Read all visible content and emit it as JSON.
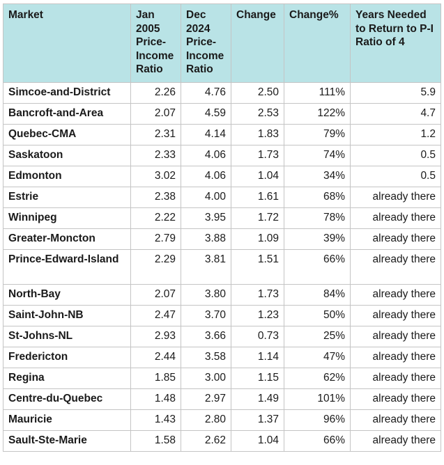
{
  "table": {
    "headers": {
      "market": "Market",
      "jan": "Jan 2005 Price-Income Ratio",
      "dec": "Dec 2024 Price-Income Ratio",
      "change": "Change",
      "change_pct": "Change%",
      "years": "Years Needed to Return to P-I Ratio of 4"
    },
    "rows": [
      {
        "market": "Simcoe-and-District",
        "jan": "2.26",
        "dec": "4.76",
        "change": "2.50",
        "change_pct": "111%",
        "years": "5.9"
      },
      {
        "market": "Bancroft-and-Area",
        "jan": "2.07",
        "dec": "4.59",
        "change": "2.53",
        "change_pct": "122%",
        "years": "4.7"
      },
      {
        "market": "Quebec-CMA",
        "jan": "2.31",
        "dec": "4.14",
        "change": "1.83",
        "change_pct": "79%",
        "years": "1.2"
      },
      {
        "market": "Saskatoon",
        "jan": "2.33",
        "dec": "4.06",
        "change": "1.73",
        "change_pct": "74%",
        "years": "0.5"
      },
      {
        "market": "Edmonton",
        "jan": "3.02",
        "dec": "4.06",
        "change": "1.04",
        "change_pct": "34%",
        "years": "0.5"
      },
      {
        "market": "Estrie",
        "jan": "2.38",
        "dec": "4.00",
        "change": "1.61",
        "change_pct": "68%",
        "years": "already there"
      },
      {
        "market": "Winnipeg",
        "jan": "2.22",
        "dec": "3.95",
        "change": "1.72",
        "change_pct": "78%",
        "years": "already there"
      },
      {
        "market": "Greater-Moncton",
        "jan": "2.79",
        "dec": "3.88",
        "change": "1.09",
        "change_pct": "39%",
        "years": "already there"
      },
      {
        "market": "Prince-Edward-Island",
        "jan": "2.29",
        "dec": "3.81",
        "change": "1.51",
        "change_pct": "66%",
        "years": "already there"
      },
      {
        "market": "North-Bay",
        "jan": "2.07",
        "dec": "3.80",
        "change": "1.73",
        "change_pct": "84%",
        "years": "already there"
      },
      {
        "market": "Saint-John-NB",
        "jan": "2.47",
        "dec": "3.70",
        "change": "1.23",
        "change_pct": "50%",
        "years": "already there"
      },
      {
        "market": "St-Johns-NL",
        "jan": "2.93",
        "dec": "3.66",
        "change": "0.73",
        "change_pct": "25%",
        "years": "already there"
      },
      {
        "market": "Fredericton",
        "jan": "2.44",
        "dec": "3.58",
        "change": "1.14",
        "change_pct": "47%",
        "years": "already there"
      },
      {
        "market": "Regina",
        "jan": "1.85",
        "dec": "3.00",
        "change": "1.15",
        "change_pct": "62%",
        "years": "already there"
      },
      {
        "market": "Centre-du-Quebec",
        "jan": "1.48",
        "dec": "2.97",
        "change": "1.49",
        "change_pct": "101%",
        "years": "already there"
      },
      {
        "market": "Mauricie",
        "jan": "1.43",
        "dec": "2.80",
        "change": "1.37",
        "change_pct": "96%",
        "years": "already there"
      },
      {
        "market": "Sault-Ste-Marie",
        "jan": "1.58",
        "dec": "2.62",
        "change": "1.04",
        "change_pct": "66%",
        "years": "already there"
      }
    ]
  },
  "colors": {
    "header_background": "#b9e3e6",
    "grid_line": "#c4c4c4",
    "text": "#1a1a1a"
  }
}
